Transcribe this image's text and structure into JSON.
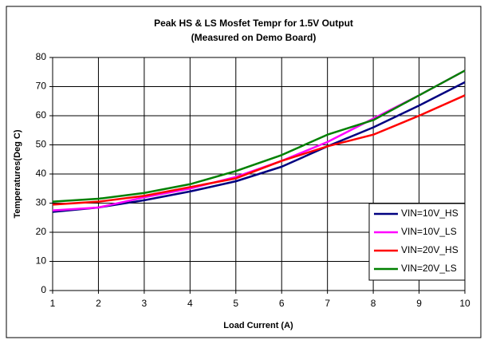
{
  "chart_data": {
    "type": "line",
    "title": "Peak HS & LS Mosfet Tempr for 1.5V Output",
    "subtitle": "(Measured on Demo Board)",
    "x_label": "Load Current (A)",
    "y_label": "Temperatures(Deg C)",
    "x": [
      1,
      2,
      3,
      4,
      5,
      6,
      7,
      8,
      9,
      10
    ],
    "series": [
      {
        "name": "VIN=10V_HS",
        "color": "#000080",
        "values": [
          27,
          28.5,
          31,
          34,
          37.5,
          42.5,
          49.5,
          56,
          63.5,
          71.5
        ]
      },
      {
        "name": "VIN=10V_LS",
        "color": "#ff00ff",
        "values": [
          27.5,
          28.5,
          32,
          35,
          39,
          44.5,
          51,
          59,
          67,
          75.5
        ]
      },
      {
        "name": "VIN=20V_HS",
        "color": "#ff0000",
        "values": [
          29.5,
          30.5,
          32.5,
          35.5,
          38.5,
          44.5,
          49.5,
          53.5,
          60,
          67
        ]
      },
      {
        "name": "VIN=20V_LS",
        "color": "#008000",
        "values": [
          30.5,
          31.5,
          33.5,
          36.5,
          41,
          46.5,
          53.5,
          58.5,
          67,
          75.5
        ]
      }
    ],
    "xlim": [
      1,
      10
    ],
    "xticks": [
      1,
      2,
      3,
      4,
      5,
      6,
      7,
      8,
      9,
      10
    ],
    "ylim": [
      0,
      80
    ],
    "yticks": [
      0,
      10,
      20,
      30,
      40,
      50,
      60,
      70,
      80
    ],
    "grid": true,
    "legend": "lower right"
  }
}
